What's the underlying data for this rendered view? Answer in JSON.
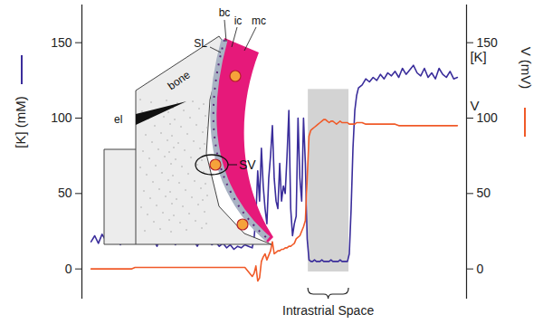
{
  "chart_data": {
    "type": "line",
    "x": [
      0,
      1,
      2,
      3,
      4,
      5,
      6,
      7,
      8,
      9,
      10,
      11,
      12,
      13,
      14,
      15,
      16,
      17,
      18,
      19,
      20,
      21,
      22,
      23,
      24,
      25,
      26,
      27,
      28,
      29,
      30,
      31,
      32,
      33,
      34,
      35,
      36,
      37,
      38,
      39,
      40,
      41,
      42,
      43,
      44,
      44.5,
      45,
      45.5,
      46,
      46.5,
      47,
      47.5,
      48,
      48.5,
      49,
      49.5,
      50,
      50.5,
      51,
      51.5,
      52,
      52.5,
      53,
      53.5,
      54,
      54.5,
      55,
      55.5,
      56,
      56.5,
      57,
      57.5,
      58,
      58.5,
      59,
      59.5,
      60,
      60.5,
      61,
      61.5,
      62,
      62.5,
      63,
      63.5,
      64,
      64.5,
      65,
      65.5,
      66,
      66.5,
      67,
      67.5,
      68,
      68.5,
      69,
      69.5,
      70,
      70.5,
      71,
      71.5,
      72,
      72.5,
      73,
      74,
      75,
      76,
      77,
      78,
      79,
      80,
      81,
      82,
      83,
      84,
      85,
      86,
      87,
      88,
      89,
      90,
      91,
      92,
      93,
      94,
      95,
      96,
      97,
      98,
      99,
      100
    ],
    "xlim": [
      -2.5,
      102.5
    ],
    "xticks": [],
    "ylim": [
      -20,
      175
    ],
    "yticks": [
      0,
      50,
      100,
      150
    ],
    "y_label": "[K] (mM)",
    "y2lim": [
      -20,
      175
    ],
    "y2ticks": [
      0,
      50,
      100,
      150
    ],
    "y2_label": "V (mV)",
    "series": [
      {
        "name": "[K]",
        "color": "#3a2d9b",
        "values": [
          18,
          22,
          17,
          23,
          19,
          25,
          18,
          21,
          16,
          22,
          20,
          24,
          17,
          21,
          19,
          23,
          18,
          20,
          15,
          22,
          19,
          17,
          21,
          16,
          20,
          18,
          22,
          17,
          19,
          15,
          20,
          17,
          19,
          16,
          18,
          15,
          17,
          14,
          16,
          13,
          15,
          14,
          16,
          15,
          14,
          20,
          35,
          65,
          45,
          80,
          55,
          40,
          30,
          60,
          75,
          95,
          60,
          45,
          40,
          70,
          45,
          55,
          50,
          75,
          105,
          40,
          22,
          30,
          35,
          100,
          60,
          45,
          100,
          70,
          20,
          6,
          5,
          5,
          6,
          5,
          5,
          5,
          6,
          5,
          5,
          5,
          5,
          6,
          5,
          5,
          5,
          5,
          6,
          5,
          5,
          5,
          5,
          10,
          40,
          80,
          105,
          115,
          120,
          122,
          126,
          124,
          127,
          125,
          129,
          126,
          130,
          128,
          131,
          127,
          133,
          129,
          132,
          135,
          130,
          128,
          133,
          127,
          130,
          126,
          133,
          129,
          127,
          131,
          126,
          127
        ]
      },
      {
        "name": "V",
        "color": "#f05a28",
        "axis": "y2",
        "values": [
          0,
          0,
          0,
          0,
          0,
          0,
          0,
          0,
          0,
          0,
          0,
          0,
          1,
          1,
          1,
          1,
          1,
          1,
          1,
          1,
          1,
          1,
          1,
          1,
          1,
          1,
          1,
          1,
          1,
          1,
          1,
          1,
          1,
          1,
          1,
          1,
          1,
          1,
          1,
          1,
          1,
          1,
          1,
          -2,
          -5,
          -3,
          2,
          -8,
          -6,
          5,
          8,
          10,
          6,
          9,
          12,
          18,
          10,
          11,
          12,
          12,
          13,
          13,
          14,
          14,
          15,
          15,
          16,
          17,
          20,
          21,
          22,
          25,
          28,
          32,
          60,
          88,
          92,
          93,
          94,
          95,
          96,
          97,
          98,
          99,
          99,
          98,
          97,
          98,
          98,
          97,
          96,
          97,
          98,
          97,
          97,
          97,
          97,
          96,
          96,
          96,
          96,
          97,
          97,
          97,
          96,
          96,
          96,
          96,
          96,
          96,
          96,
          96,
          96,
          95,
          95,
          95,
          95,
          95,
          95,
          95,
          95,
          95,
          95,
          95,
          95,
          95,
          95,
          95,
          95,
          95
        ]
      }
    ],
    "shaded_region": {
      "label": "Intrastrial Space",
      "xlim": [
        59.3,
        70.4
      ],
      "ylim": [
        -2,
        119
      ]
    },
    "inset_labels": [
      "el",
      "bone",
      "SL",
      "bc",
      "ic",
      "mc",
      "SV"
    ]
  }
}
